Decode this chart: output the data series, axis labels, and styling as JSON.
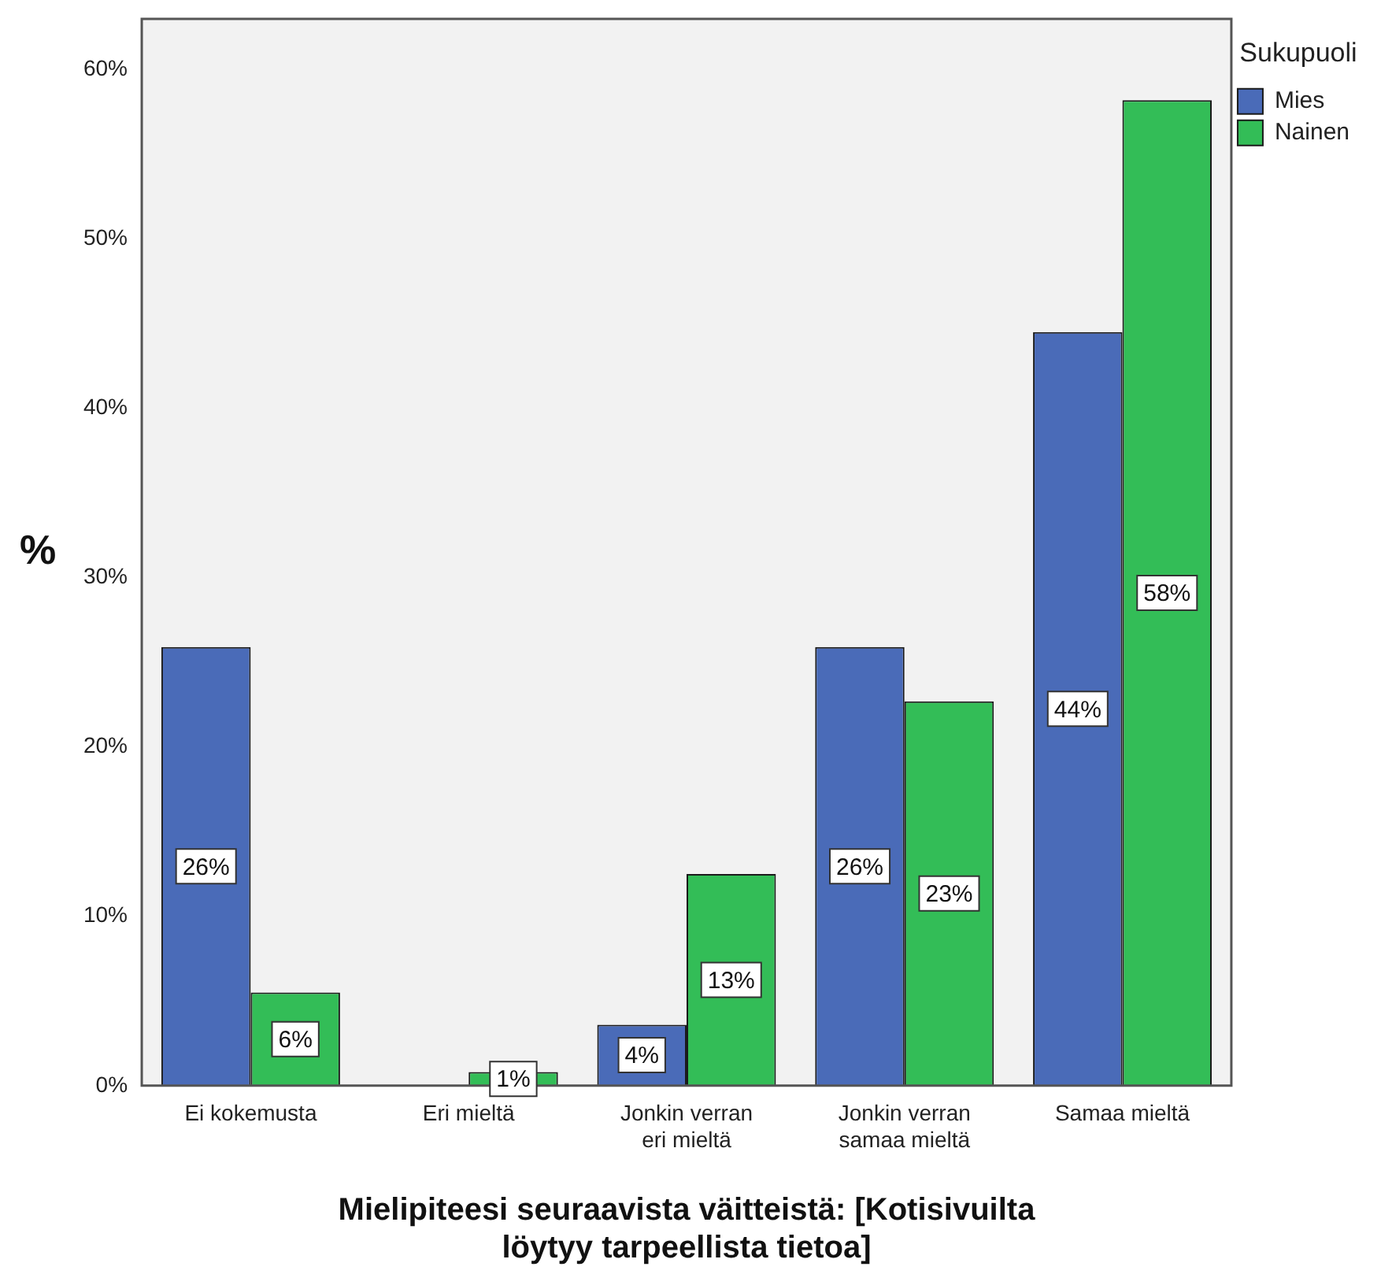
{
  "chart_data": {
    "type": "bar",
    "xlabel": "Mielipiteesi seuraavista väitteistä: [Kotisivuilta löytyy tarpeellista tietoa]",
    "ylabel": "%",
    "legend_title": "Sukupuoli",
    "legend": "top right",
    "categories": [
      "Ei kokemusta",
      "Eri mieltä",
      "Jonkin verran eri mieltä",
      "Jonkin verran samaa mieltä",
      "Samaa mieltä"
    ],
    "series": [
      {
        "name": "Mies",
        "color": "#4a6bb8",
        "values": [
          25.9,
          0,
          3.6,
          25.9,
          44.5
        ],
        "value_labels": [
          "26%",
          null,
          "4%",
          "26%",
          "44%"
        ]
      },
      {
        "name": "Nainen",
        "color": "#33bd57",
        "values": [
          5.5,
          0.8,
          12.5,
          22.7,
          58.2
        ],
        "value_labels": [
          "6%",
          "1%",
          "13%",
          "23%",
          "58%"
        ]
      }
    ],
    "ylim": [
      0,
      63
    ],
    "yticks": [
      {
        "value": 0,
        "label": "0%"
      },
      {
        "value": 10,
        "label": "10%"
      },
      {
        "value": 20,
        "label": "20%"
      },
      {
        "value": 30,
        "label": "30%"
      },
      {
        "value": 40,
        "label": "40%"
      },
      {
        "value": 50,
        "label": "50%"
      },
      {
        "value": 60,
        "label": "60%"
      }
    ],
    "grid": false
  }
}
